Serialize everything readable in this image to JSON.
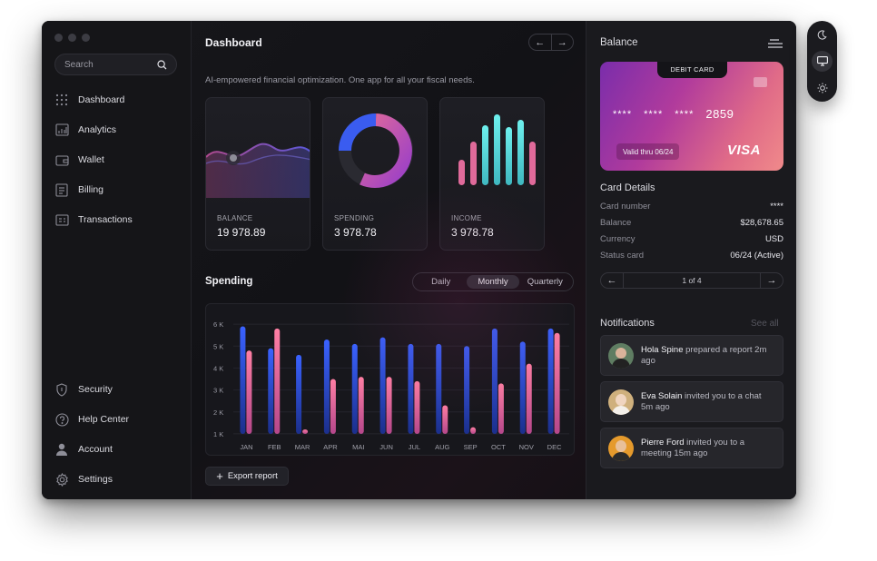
{
  "sidebar": {
    "search_placeholder": "Search",
    "items": [
      {
        "label": "Dashboard",
        "icon": "grid-icon"
      },
      {
        "label": "Analytics",
        "icon": "bar-chart-icon"
      },
      {
        "label": "Wallet",
        "icon": "wallet-icon"
      },
      {
        "label": "Billing",
        "icon": "billing-icon"
      },
      {
        "label": "Transactions",
        "icon": "transactions-icon"
      }
    ],
    "bottom_items": [
      {
        "label": "Security",
        "icon": "shield-icon"
      },
      {
        "label": "Help Center",
        "icon": "help-icon"
      },
      {
        "label": "Account",
        "icon": "user-icon"
      },
      {
        "label": "Settings",
        "icon": "gear-icon"
      }
    ]
  },
  "main": {
    "title": "Dashboard",
    "subtitle": "AI-empowered financial optimization. One app for all your fiscal needs.",
    "stats": [
      {
        "label": "BALANCE",
        "value": "19 978.89"
      },
      {
        "label": "SPENDING",
        "value": "3 978.78"
      },
      {
        "label": "INCOME",
        "value": "3 978.78"
      }
    ],
    "spending_title": "Spending",
    "periods": [
      "Daily",
      "Monthly",
      "Quarterly"
    ],
    "active_period": "Monthly",
    "export_label": "Export report"
  },
  "chart_data": {
    "type": "bar",
    "categories": [
      "JAN",
      "FEB",
      "MAR",
      "APR",
      "MAI",
      "JUN",
      "JUL",
      "AUG",
      "SEP",
      "OCT",
      "NOV",
      "DEC"
    ],
    "series": [
      {
        "values": [
          5.9,
          4.9,
          4.6,
          5.3,
          5.1,
          5.4,
          5.1,
          5.1,
          5.0,
          5.8,
          5.2,
          5.8
        ],
        "color": "#2f56e0"
      },
      {
        "values": [
          4.8,
          5.8,
          1.2,
          3.5,
          3.6,
          3.6,
          3.4,
          2.3,
          1.3,
          3.3,
          4.2,
          5.6
        ],
        "color": "#f07aa0"
      }
    ],
    "y_ticks": [
      "1 K",
      "2 K",
      "3 K",
      "4 K",
      "5 K",
      "6 K"
    ],
    "ylim": [
      0.5,
      6.5
    ],
    "grid": true
  },
  "balance_panel": {
    "title": "Balance",
    "card": {
      "tab_label": "DEBIT CARD",
      "masked": [
        "****",
        "****",
        "****"
      ],
      "last4": "2859",
      "valid": "Valid thru 06/24",
      "brand": "VISA"
    },
    "details_title": "Card Details",
    "details": [
      {
        "k": "Card number",
        "v": "****"
      },
      {
        "k": "Balance",
        "v": "$28,678.65"
      },
      {
        "k": "Currency",
        "v": "USD"
      },
      {
        "k": "Status card",
        "v": "06/24 (Active)"
      }
    ],
    "pager": "1 of 4",
    "notifications_title": "Notifications",
    "see_all": "See all",
    "notifications": [
      {
        "name": "Hola Spine",
        "text": " prepared a report 2m ago",
        "avatar_color": "#5f7d62"
      },
      {
        "name": "Eva Solain",
        "text": " invited you to a chat 5m ago",
        "avatar_color": "#cfb07d"
      },
      {
        "name": "Pierre Ford",
        "text": " invited you to a meeting 15m ago",
        "avatar_color": "#e59a2c"
      }
    ]
  },
  "colors": {
    "accent_blue": "#2f56e0",
    "accent_pink": "#f07aa0",
    "card_gradient_start": "#7a2dab",
    "card_gradient_end": "#f08a8a"
  }
}
